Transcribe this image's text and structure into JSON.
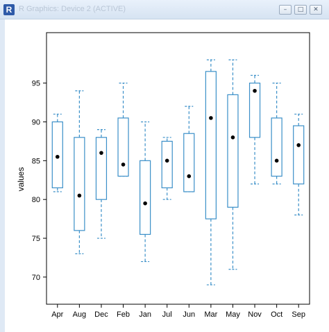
{
  "window": {
    "title": "R Graphics: Device 2 (ACTIVE)",
    "app_icon_letter": "R",
    "controls": {
      "minimize": "–",
      "maximize": "□",
      "close": "✕"
    }
  },
  "colors": {
    "box": "#3a8fc8",
    "point": "#000000",
    "axis": "#000000"
  },
  "chart_data": {
    "type": "box",
    "title": "",
    "xlabel": "",
    "ylabel": "values",
    "ylim": [
      66.5,
      101.5
    ],
    "yticks": [
      70,
      75,
      80,
      85,
      90,
      95
    ],
    "grid": false,
    "categories": [
      "Apr",
      "Aug",
      "Dec",
      "Feb",
      "Jan",
      "Jul",
      "Jun",
      "Mar",
      "May",
      "Nov",
      "Oct",
      "Sep"
    ],
    "boxes": [
      {
        "category": "Apr",
        "whisker_low": 81,
        "q1": 81.5,
        "median": 85.5,
        "q3": 90,
        "whisker_high": 91
      },
      {
        "category": "Aug",
        "whisker_low": 73,
        "q1": 76,
        "median": 80.5,
        "q3": 88,
        "whisker_high": 94
      },
      {
        "category": "Dec",
        "whisker_low": 75,
        "q1": 80,
        "median": 86,
        "q3": 88,
        "whisker_high": 89
      },
      {
        "category": "Feb",
        "whisker_low": 83,
        "q1": 83,
        "median": 84.5,
        "q3": 90.5,
        "whisker_high": 95
      },
      {
        "category": "Jan",
        "whisker_low": 72,
        "q1": 75.5,
        "median": 79.5,
        "q3": 85,
        "whisker_high": 90
      },
      {
        "category": "Jul",
        "whisker_low": 80,
        "q1": 81.5,
        "median": 85,
        "q3": 87.5,
        "whisker_high": 88
      },
      {
        "category": "Jun",
        "whisker_low": 81,
        "q1": 81,
        "median": 83,
        "q3": 88.5,
        "whisker_high": 92
      },
      {
        "category": "Mar",
        "whisker_low": 69,
        "q1": 77.5,
        "median": 90.5,
        "q3": 96.5,
        "whisker_high": 98
      },
      {
        "category": "May",
        "whisker_low": 71,
        "q1": 79,
        "median": 88,
        "q3": 93.5,
        "whisker_high": 98
      },
      {
        "category": "Nov",
        "whisker_low": 82,
        "q1": 88,
        "median": 94,
        "q3": 95,
        "whisker_high": 96
      },
      {
        "category": "Oct",
        "whisker_low": 82,
        "q1": 83,
        "median": 85,
        "q3": 90.5,
        "whisker_high": 95
      },
      {
        "category": "Sep",
        "whisker_low": 78,
        "q1": 82,
        "median": 87,
        "q3": 89.5,
        "whisker_high": 91
      }
    ]
  }
}
